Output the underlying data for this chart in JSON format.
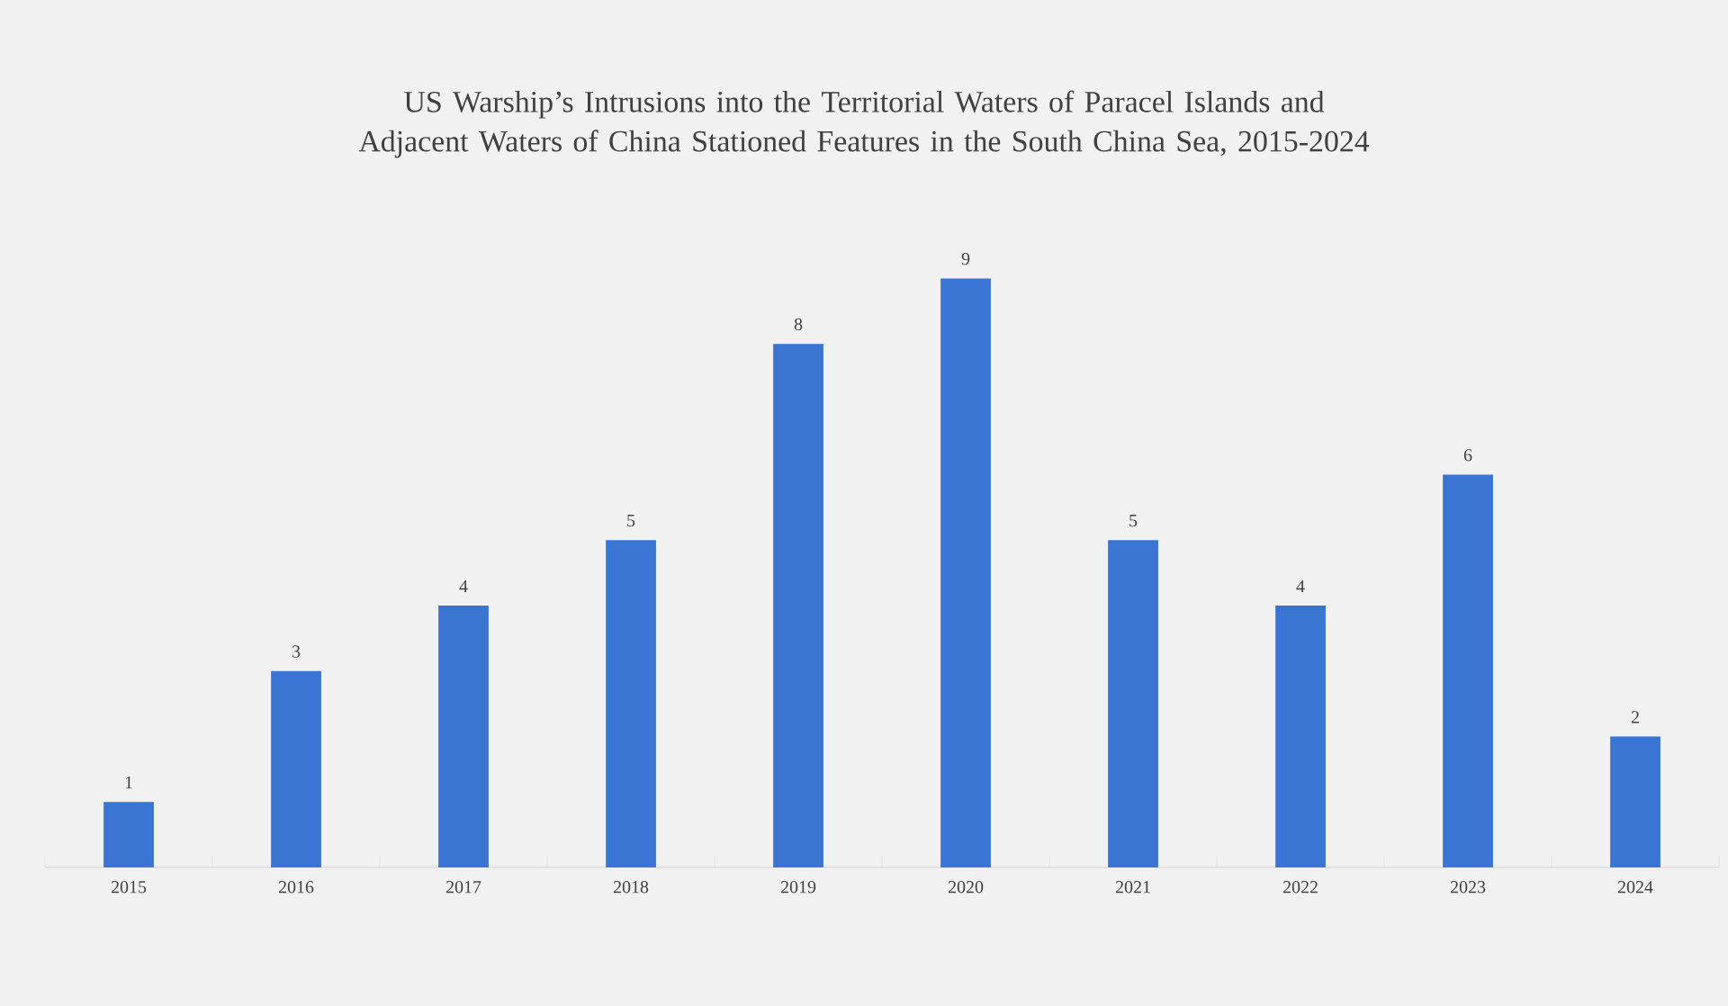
{
  "chart_data": {
    "type": "bar",
    "title": "US Warship’s Intrusions into the Territorial Waters of Paracel Islands and Adjacent Waters of China Stationed Features in the South China Sea, 2015-2024",
    "categories": [
      "2015",
      "2016",
      "2017",
      "2018",
      "2019",
      "2020",
      "2021",
      "2022",
      "2023",
      "2024"
    ],
    "values": [
      1,
      3,
      4,
      5,
      8,
      9,
      5,
      4,
      6,
      2
    ],
    "color": "#3a75d3",
    "data_labels": true
  }
}
